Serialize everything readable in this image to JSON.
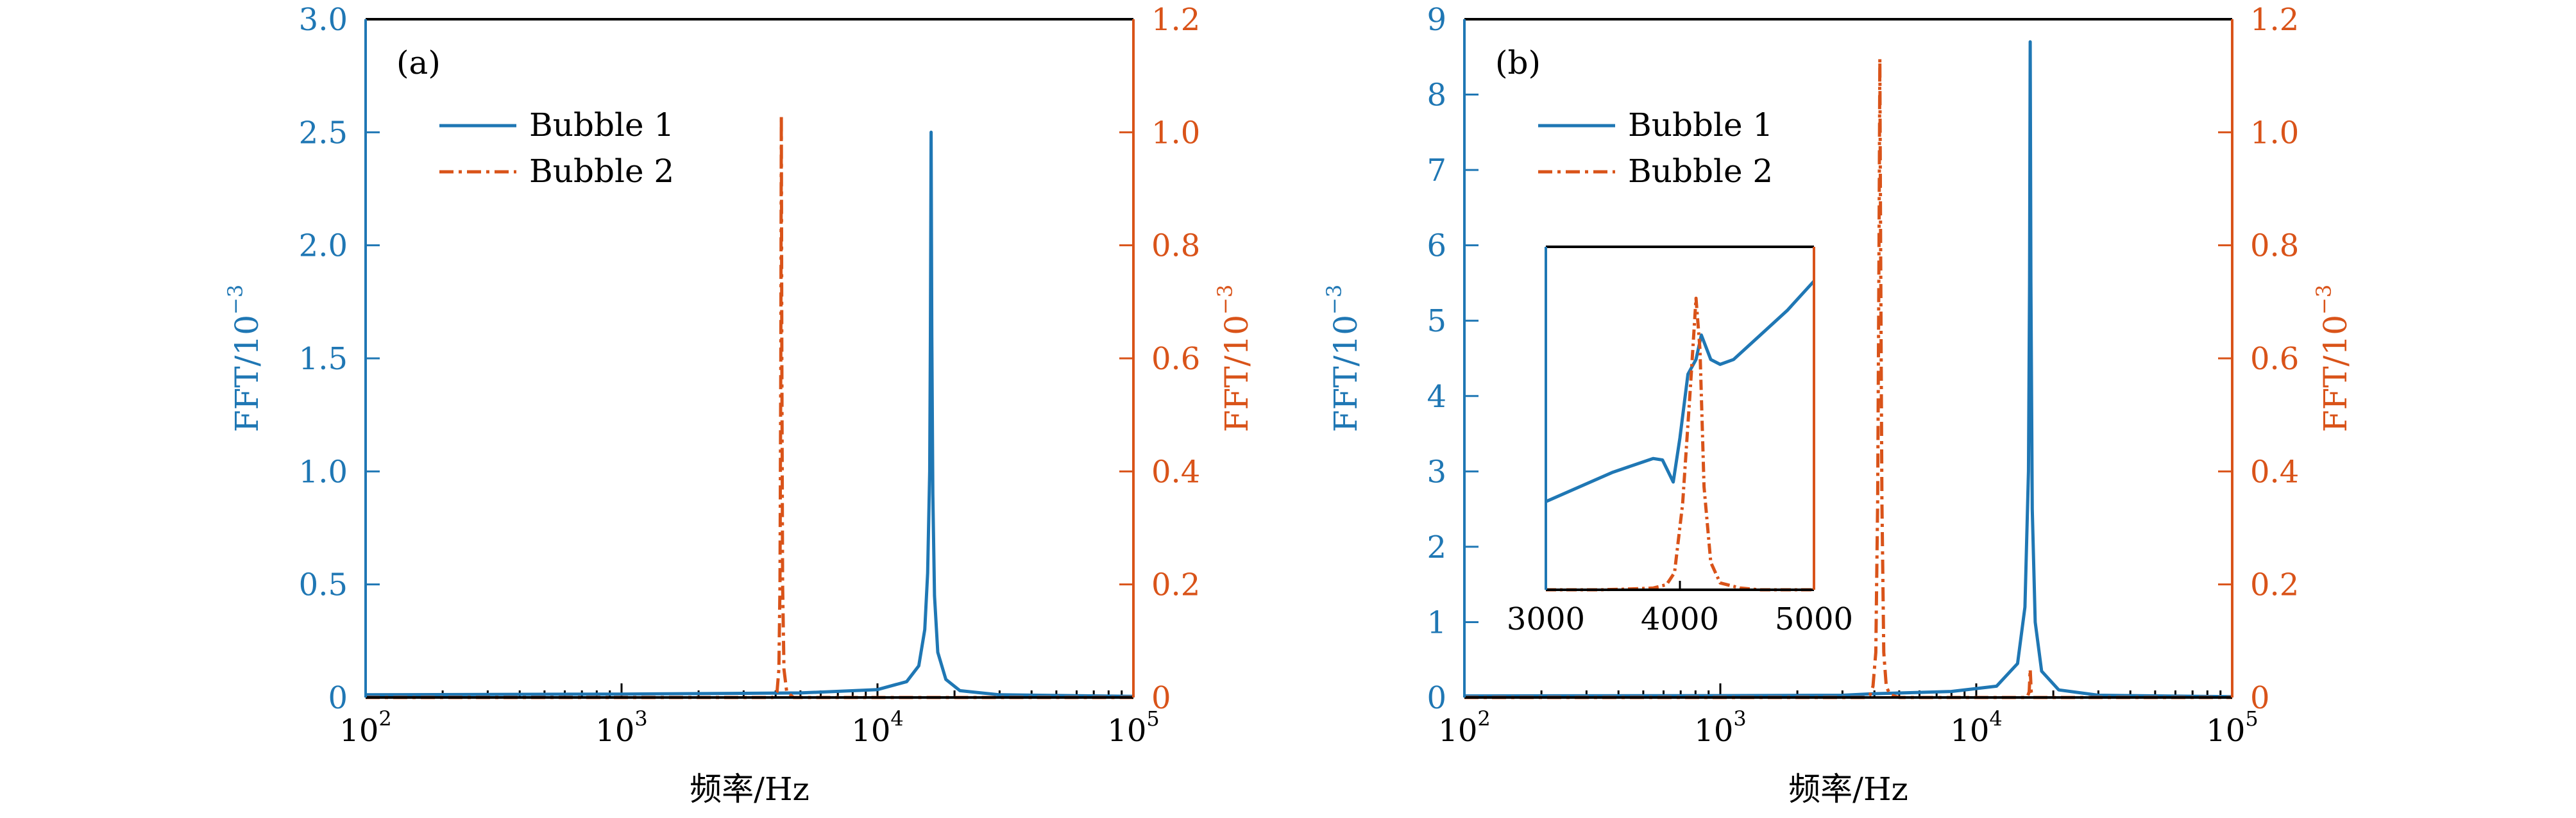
{
  "colors": {
    "left_axis": "#1f77b4",
    "right_axis": "#d95319",
    "frame": "#000000",
    "background": "#ffffff"
  },
  "chart_data": [
    {
      "type": "line",
      "panel_label": "(a)",
      "xlabel": "频率/Hz",
      "xscale": "log",
      "xlim": [
        100,
        100000
      ],
      "x_tick_labels": [
        {
          "base": "10",
          "exp": "2"
        },
        {
          "base": "10",
          "exp": "3"
        },
        {
          "base": "10",
          "exp": "4"
        },
        {
          "base": "10",
          "exp": "5"
        }
      ],
      "ylabel_left": {
        "base": "FFT/10",
        "exp": "−3"
      },
      "ylim_left": [
        0,
        3.0
      ],
      "yticks_left": [
        "0",
        "0.5",
        "1.0",
        "1.5",
        "2.0",
        "2.5",
        "3.0"
      ],
      "ylabel_right": {
        "base": "FFT/10",
        "exp": "−3"
      },
      "ylim_right": [
        0,
        1.2
      ],
      "yticks_right": [
        "0",
        "0.2",
        "0.4",
        "0.6",
        "0.8",
        "1.0",
        "1.2"
      ],
      "legend_position": "upper-left",
      "series": [
        {
          "name": "Bubble 1",
          "axis": "left",
          "style": "solid",
          "color": "#1f77b4",
          "points": [
            [
              100,
              0.012
            ],
            [
              1000,
              0.015
            ],
            [
              5000,
              0.02
            ],
            [
              10000,
              0.035
            ],
            [
              13000,
              0.07
            ],
            [
              14500,
              0.14
            ],
            [
              15300,
              0.3
            ],
            [
              15700,
              0.55
            ],
            [
              16000,
              1.0
            ],
            [
              16100,
              1.6
            ],
            [
              16200,
              2.5
            ],
            [
              16300,
              1.6
            ],
            [
              16450,
              0.9
            ],
            [
              16700,
              0.45
            ],
            [
              17200,
              0.2
            ],
            [
              18500,
              0.08
            ],
            [
              21000,
              0.03
            ],
            [
              30000,
              0.012
            ],
            [
              100000,
              0.005
            ]
          ]
        },
        {
          "name": "Bubble 2",
          "axis": "right",
          "style": "dashdot",
          "color": "#d95319",
          "points": [
            [
              100,
              0.0
            ],
            [
              3900,
              0.0
            ],
            [
              4050,
              0.01
            ],
            [
              4120,
              0.05
            ],
            [
              4160,
              0.2
            ],
            [
              4190,
              0.6
            ],
            [
              4210,
              1.03
            ],
            [
              4230,
              0.6
            ],
            [
              4260,
              0.2
            ],
            [
              4310,
              0.05
            ],
            [
              4420,
              0.01
            ],
            [
              4700,
              0.0
            ],
            [
              100000,
              0.0
            ]
          ]
        }
      ]
    },
    {
      "type": "line",
      "panel_label": "(b)",
      "xlabel": "频率/Hz",
      "xscale": "log",
      "xlim": [
        100,
        100000
      ],
      "x_tick_labels": [
        {
          "base": "10",
          "exp": "2"
        },
        {
          "base": "10",
          "exp": "3"
        },
        {
          "base": "10",
          "exp": "4"
        },
        {
          "base": "10",
          "exp": "5"
        }
      ],
      "ylabel_left": {
        "base": "FFT/10",
        "exp": "−3"
      },
      "ylim_left": [
        0,
        9
      ],
      "yticks_left": [
        "0",
        "1",
        "2",
        "3",
        "4",
        "5",
        "6",
        "7",
        "8",
        "9"
      ],
      "ylabel_right": {
        "base": "FFT/10",
        "exp": "−3"
      },
      "ylim_right": [
        0,
        1.2
      ],
      "yticks_right": [
        "0",
        "0.2",
        "0.4",
        "0.6",
        "0.8",
        "1.0",
        "1.2"
      ],
      "legend_position": "upper-left",
      "series": [
        {
          "name": "Bubble 1",
          "axis": "left",
          "style": "solid",
          "color": "#1f77b4",
          "points": [
            [
              100,
              0.02
            ],
            [
              1000,
              0.025
            ],
            [
              3000,
              0.03
            ],
            [
              4000,
              0.05
            ],
            [
              8000,
              0.08
            ],
            [
              12000,
              0.15
            ],
            [
              14500,
              0.45
            ],
            [
              15500,
              1.2
            ],
            [
              16000,
              3.0
            ],
            [
              16150,
              5.5
            ],
            [
              16250,
              8.7
            ],
            [
              16350,
              5.5
            ],
            [
              16550,
              2.5
            ],
            [
              17000,
              1.0
            ],
            [
              18000,
              0.35
            ],
            [
              21000,
              0.1
            ],
            [
              30000,
              0.03
            ],
            [
              100000,
              0.01
            ]
          ]
        },
        {
          "name": "Bubble 2",
          "axis": "right",
          "style": "dashdot",
          "color": "#d95319",
          "points": [
            [
              100,
              0.0
            ],
            [
              3700,
              0.0
            ],
            [
              3850,
              0.005
            ],
            [
              3950,
              0.02
            ],
            [
              4050,
              0.08
            ],
            [
              4120,
              0.35
            ],
            [
              4170,
              0.8
            ],
            [
              4200,
              1.13
            ],
            [
              4230,
              0.8
            ],
            [
              4280,
              0.35
            ],
            [
              4350,
              0.08
            ],
            [
              4450,
              0.02
            ],
            [
              4600,
              0.005
            ],
            [
              5000,
              0.0
            ],
            [
              15800,
              0.0
            ],
            [
              16100,
              0.01
            ],
            [
              16250,
              0.05
            ],
            [
              16400,
              0.01
            ],
            [
              16700,
              0.0
            ],
            [
              100000,
              0.0
            ]
          ]
        }
      ],
      "inset": {
        "xlim": [
          3000,
          5000
        ],
        "x_tick_labels": [
          "3000",
          "4000",
          "5000"
        ],
        "series": [
          {
            "axis": "left",
            "style": "solid",
            "color": "#1f77b4",
            "points": [
              [
                3000,
                0.018
              ],
              [
                3500,
                0.024
              ],
              [
                3800,
                0.0268
              ],
              [
                3870,
                0.0265
              ],
              [
                3950,
                0.022
              ],
              [
                4000,
                0.031
              ],
              [
                4060,
                0.044
              ],
              [
                4120,
                0.047
              ],
              [
                4160,
                0.052
              ],
              [
                4230,
                0.047
              ],
              [
                4300,
                0.046
              ],
              [
                4400,
                0.047
              ],
              [
                4600,
                0.052
              ],
              [
                4800,
                0.057
              ],
              [
                5000,
                0.063
              ]
            ]
          },
          {
            "axis": "right",
            "style": "dashdot",
            "color": "#d95319",
            "points": [
              [
                3000,
                0.0
              ],
              [
                3400,
                0.0
              ],
              [
                3600,
                0.002
              ],
              [
                3800,
                0.005
              ],
              [
                3900,
                0.015
              ],
              [
                3960,
                0.05
              ],
              [
                4020,
                0.25
              ],
              [
                4080,
                0.6
              ],
              [
                4120,
                0.85
              ],
              [
                4150,
                0.7
              ],
              [
                4180,
                0.3
              ],
              [
                4230,
                0.08
              ],
              [
                4300,
                0.02
              ],
              [
                4450,
                0.005
              ],
              [
                4600,
                0.0
              ],
              [
                5000,
                0.0
              ]
            ]
          }
        ]
      }
    }
  ]
}
